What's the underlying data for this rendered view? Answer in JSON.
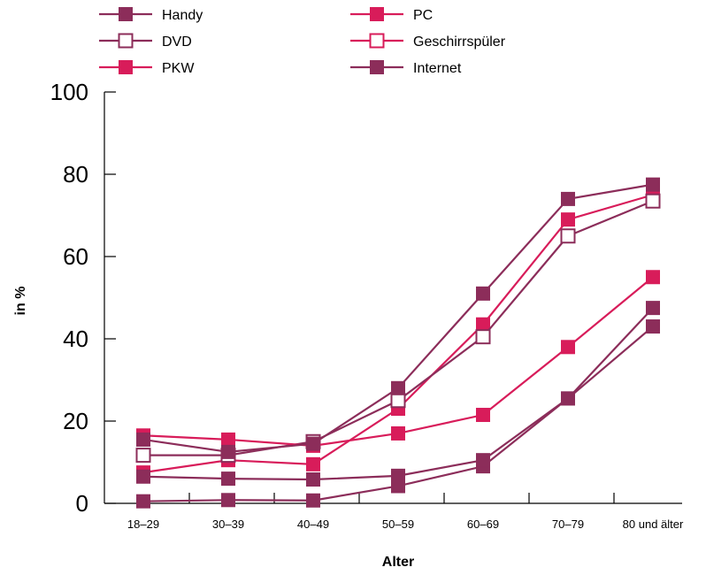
{
  "chart_data": {
    "type": "line",
    "xlabel": "Alter",
    "ylabel": "in %",
    "categories": [
      "18–29",
      "30–39",
      "40–49",
      "50–59",
      "60–69",
      "70–79",
      "80 und älter"
    ],
    "y_ticks": [
      "0",
      "20",
      "40",
      "60",
      "80",
      "100"
    ],
    "ylim": [
      0,
      100
    ],
    "grid": false,
    "legend_position": "top",
    "series": [
      {
        "name": "Handy",
        "color": "#8c2d5a",
        "marker": "filled-square",
        "values": [
          0.5,
          0.8,
          0.7,
          4.2,
          9.0,
          25.5,
          43.0
        ]
      },
      {
        "name": "PC",
        "color": "#d81c5a",
        "marker": "filled-square",
        "values": [
          7.5,
          10.5,
          9.5,
          23.0,
          43.5,
          69.0,
          75.0
        ]
      },
      {
        "name": "DVD",
        "color": "#8c2d5a",
        "marker": "open-square",
        "values": [
          11.7,
          11.7,
          15.0,
          25.0,
          40.5,
          65.0,
          73.5
        ]
      },
      {
        "name": "Geschirrspüler",
        "color": "#d81c5a",
        "marker": "open-square",
        "values": [
          null,
          null,
          null,
          null,
          null,
          null,
          null
        ]
      },
      {
        "name": "PKW",
        "color": "#d81c5a",
        "marker": "filled-square",
        "values": [
          16.5,
          15.5,
          14.0,
          17.0,
          21.5,
          38.0,
          55.0
        ]
      },
      {
        "name": "Internet",
        "color": "#8c2d5a",
        "marker": "filled-square",
        "values": [
          15.5,
          12.5,
          14.5,
          28.0,
          51.0,
          74.0,
          77.5
        ]
      },
      {
        "name": "",
        "color": "#8c2d5a",
        "marker": "filled-square",
        "values": [
          6.5,
          6.0,
          5.8,
          6.7,
          10.5,
          25.5,
          47.5
        ]
      }
    ]
  }
}
